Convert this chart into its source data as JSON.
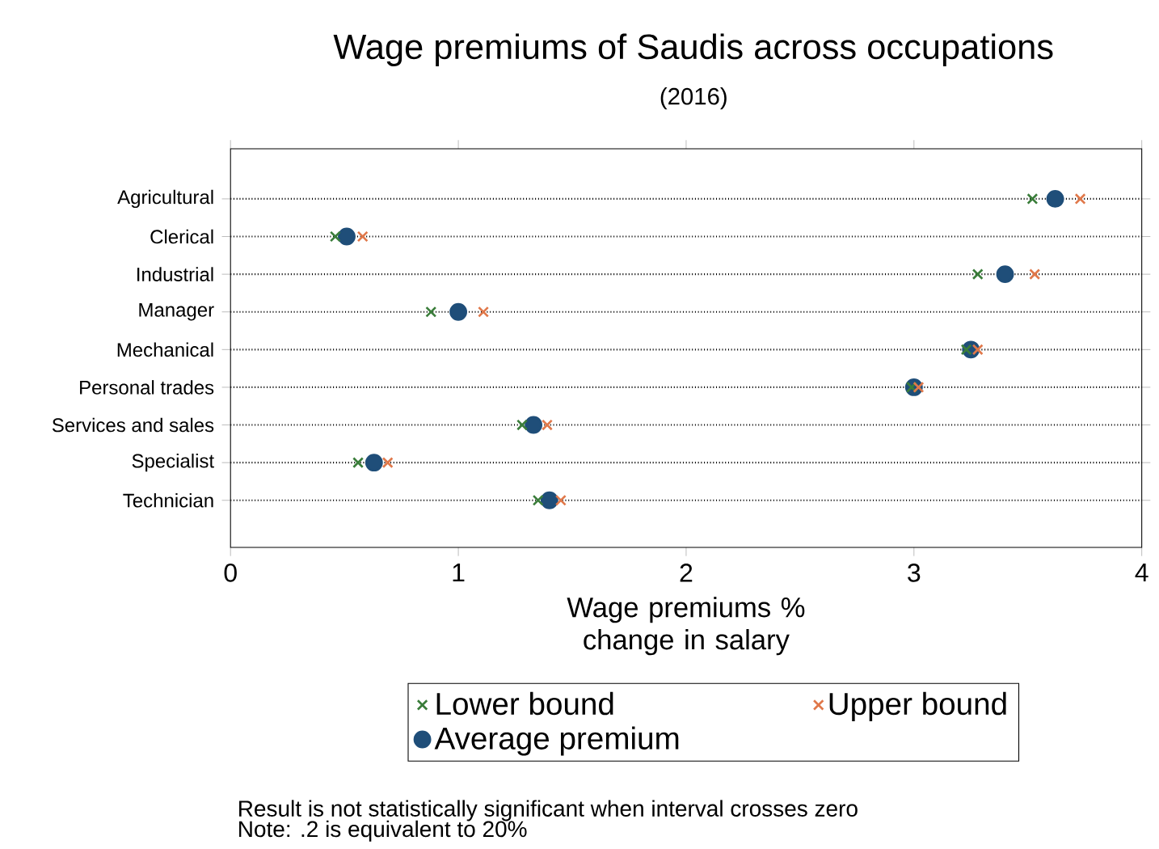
{
  "chart_data": {
    "type": "scatter",
    "orientation": "horizontal",
    "title": "Wage premiums of Saudis across occupations",
    "subtitle": "(2016)",
    "xlabel": "Wage premiums % change in salary",
    "categories": [
      "Agricultural",
      "Clerical",
      "Industrial",
      "Manager",
      "Mechanical",
      "Personal trades",
      "Services and sales",
      "Specialist",
      "Technician"
    ],
    "series": [
      {
        "name": "Lower bound",
        "color": "#3a7d3a",
        "marker": "cross",
        "values": [
          3.52,
          0.46,
          3.28,
          0.88,
          3.23,
          2.99,
          1.28,
          0.56,
          1.35
        ]
      },
      {
        "name": "Upper bound",
        "color": "#e0784a",
        "marker": "cross",
        "values": [
          3.73,
          0.58,
          3.53,
          1.11,
          3.28,
          3.02,
          1.39,
          0.69,
          1.45
        ]
      },
      {
        "name": "Average premium",
        "color": "#1f4e79",
        "marker": "circle",
        "values": [
          3.62,
          0.51,
          3.4,
          1.0,
          3.25,
          3.0,
          1.33,
          0.63,
          1.4
        ]
      }
    ],
    "xlim": [
      0,
      4
    ],
    "xticks": [
      0,
      1,
      2,
      3,
      4
    ],
    "grid": "y",
    "legend": "bottom",
    "annotations": [
      "Result is not statistically significant when interval crosses zero",
      "Note: .2 is equivalent to 20%"
    ]
  }
}
